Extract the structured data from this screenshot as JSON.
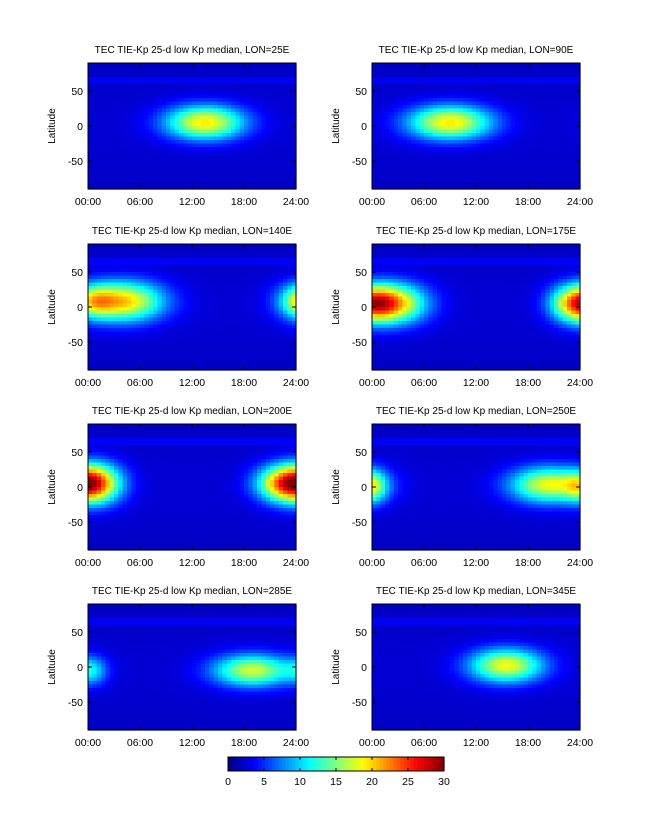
{
  "chart_data": {
    "type": "heatmap",
    "panels": [
      {
        "title": "TEC  TIE-Kp 25-d low Kp median, LON=25E",
        "ylabel": "Latitude",
        "blobs": [
          {
            "t": 13.5,
            "lat": 5,
            "st": 3.2,
            "sl": 17,
            "a": 17
          }
        ]
      },
      {
        "title": "TEC  TIE-Kp 25-d low Kp median, LON=90E",
        "ylabel": "Latitude",
        "blobs": [
          {
            "t": 9.0,
            "lat": 5,
            "st": 3.4,
            "sl": 17,
            "a": 17
          }
        ]
      },
      {
        "title": "TEC  TIE-Kp 25-d low Kp median, LON=140E",
        "ylabel": "Latitude",
        "blobs": [
          {
            "t": 4.0,
            "lat": 8,
            "st": 3.3,
            "sl": 20,
            "a": 18
          },
          {
            "t": 24.5,
            "lat": 8,
            "st": 1.6,
            "sl": 16,
            "a": 9
          }
        ]
      },
      {
        "title": "TEC  TIE-Kp 25-d low Kp median, LON=175E",
        "ylabel": "Latitude",
        "blobs": [
          {
            "t": 2.2,
            "lat": 5,
            "st": 2.8,
            "sl": 20,
            "a": 19
          },
          {
            "t": 23.5,
            "lat": 5,
            "st": 2.0,
            "sl": 18,
            "a": 13
          }
        ]
      },
      {
        "title": "TEC  TIE-Kp 25-d low Kp median, LON=200E",
        "ylabel": "Latitude",
        "blobs": [
          {
            "t": 0.8,
            "lat": 5,
            "st": 2.2,
            "sl": 20,
            "a": 18
          },
          {
            "t": 22.5,
            "lat": 5,
            "st": 2.3,
            "sl": 18,
            "a": 15
          }
        ]
      },
      {
        "title": "TEC  TIE-Kp 25-d low Kp median, LON=250E",
        "ylabel": "Latitude",
        "blobs": [
          {
            "t": 20.5,
            "lat": 3,
            "st": 3.2,
            "sl": 18,
            "a": 16
          },
          {
            "t": 0.0,
            "lat": 0,
            "st": 1.2,
            "sl": 16,
            "a": 9
          }
        ]
      },
      {
        "title": "TEC  TIE-Kp 25-d low Kp median, LON=285E",
        "ylabel": "Latitude",
        "blobs": [
          {
            "t": 19.0,
            "lat": -5,
            "st": 3.2,
            "sl": 16,
            "a": 15
          },
          {
            "t": 0.5,
            "lat": -5,
            "st": 1.2,
            "sl": 14,
            "a": 6
          }
        ]
      },
      {
        "title": "TEC  TIE-Kp 25-d low Kp median, LON=345E",
        "ylabel": "Latitude",
        "blobs": [
          {
            "t": 15.5,
            "lat": 2,
            "st": 3.0,
            "sl": 17,
            "a": 16
          }
        ]
      }
    ],
    "xlim": [
      0,
      24
    ],
    "ylim": [
      -90,
      90
    ],
    "xticks": [
      "00:00",
      "06:00",
      "12:00",
      "18:00",
      "24:00"
    ],
    "xtick_values": [
      0,
      6,
      12,
      18,
      24
    ],
    "yticks": [
      "50",
      "0",
      "-50"
    ],
    "ytick_values": [
      50,
      0,
      -50
    ],
    "colorbar": {
      "min": 0,
      "max": 30,
      "ticks": [
        "0",
        "5",
        "10",
        "15",
        "20",
        "25",
        "30"
      ],
      "tick_values": [
        0,
        5,
        10,
        15,
        20,
        25,
        30
      ],
      "colormap": "jet"
    }
  }
}
